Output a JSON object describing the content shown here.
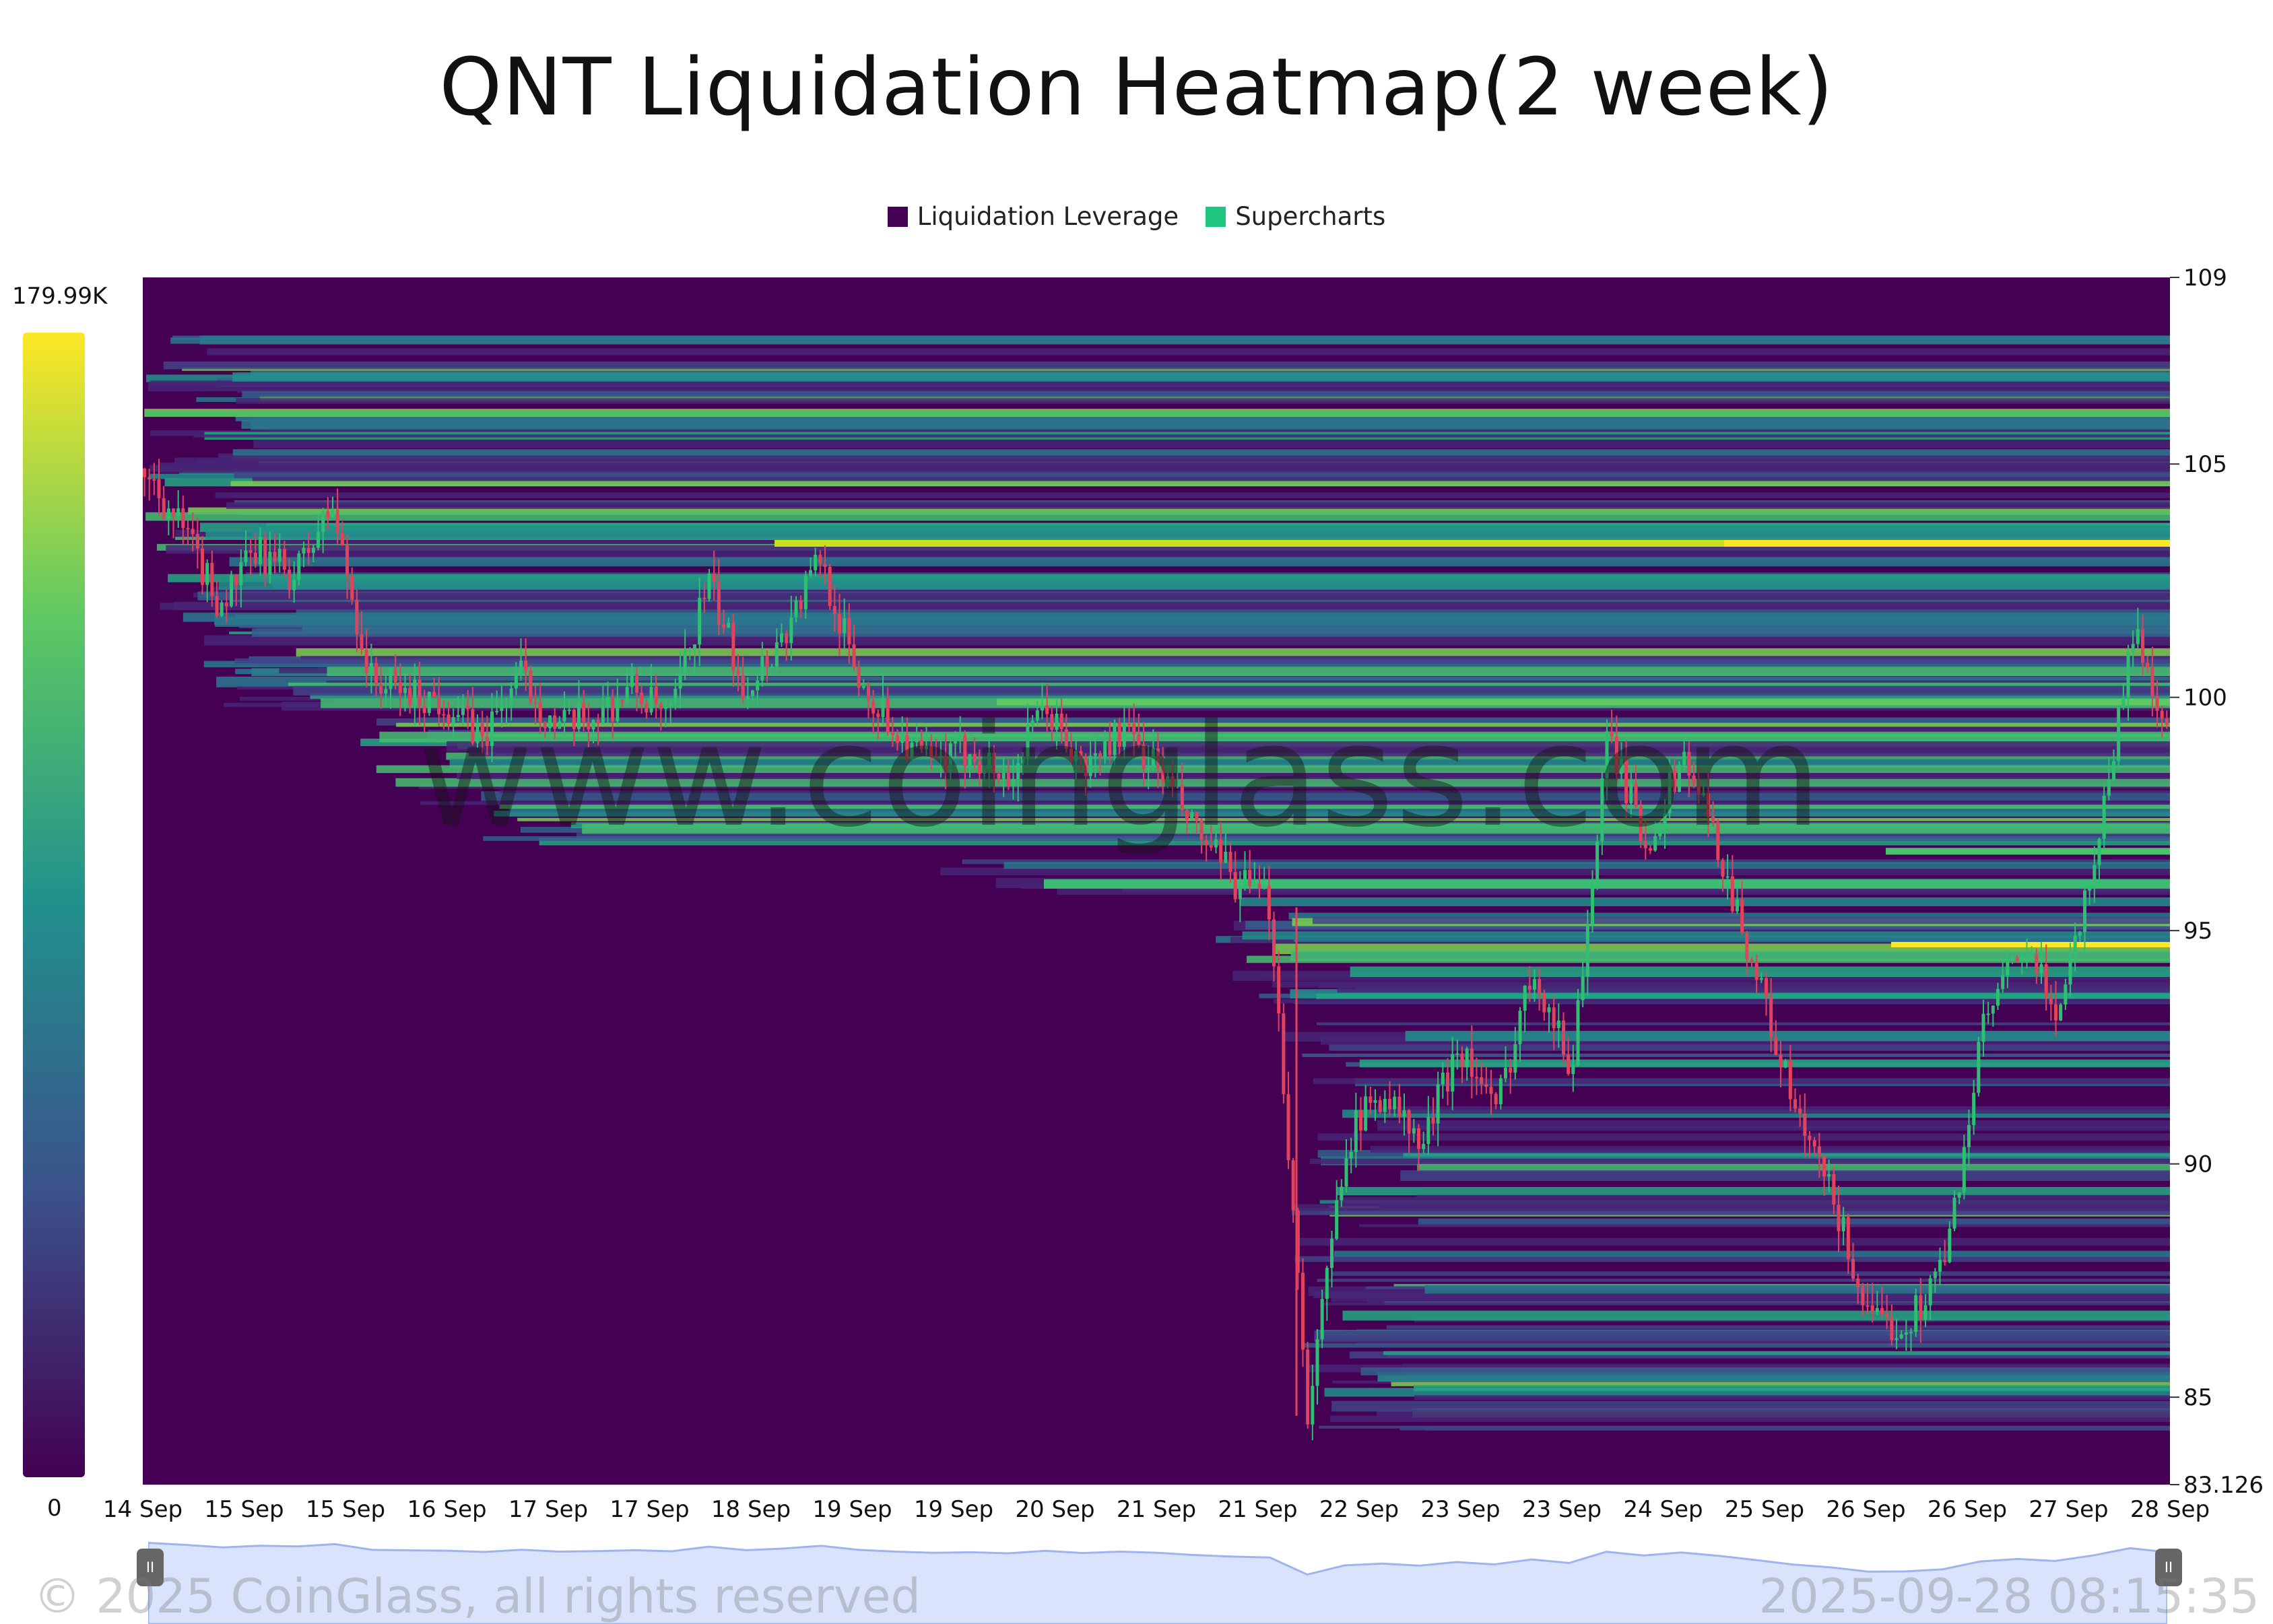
{
  "chart_data": {
    "type": "heatmap",
    "title": "QNT Liquidation Heatmap(2 week)",
    "legend": [
      {
        "name": "Liquidation Leverage",
        "color": "#440154"
      },
      {
        "name": "Supercharts",
        "color": "#1fc77e"
      }
    ],
    "colorbar": {
      "max_label": "179.99K",
      "min_label": "0",
      "colors": [
        "#440154",
        "#3b528b",
        "#21908d",
        "#5dc863",
        "#fde725"
      ]
    },
    "y_ticks": [
      "109",
      "105",
      "100",
      "95",
      "90",
      "85",
      "83.126"
    ],
    "ylim": [
      83.126,
      109
    ],
    "x_ticks": [
      "14 Sep",
      "15 Sep",
      "15 Sep",
      "16 Sep",
      "17 Sep",
      "17 Sep",
      "18 Sep",
      "19 Sep",
      "19 Sep",
      "20 Sep",
      "21 Sep",
      "21 Sep",
      "22 Sep",
      "23 Sep",
      "23 Sep",
      "24 Sep",
      "25 Sep",
      "26 Sep",
      "26 Sep",
      "27 Sep",
      "28 Sep"
    ],
    "price_path": [
      104.9,
      103.6,
      102.0,
      103.1,
      102.6,
      104.1,
      100.4,
      100.1,
      99.9,
      99.1,
      100.5,
      99.3,
      99.6,
      100.2,
      99.5,
      102.5,
      100.2,
      101.3,
      103.0,
      100.4,
      99.3,
      98.5,
      98.9,
      98.2,
      99.8,
      98.4,
      99.3,
      98.5,
      97.1,
      96.1,
      95.5,
      84.6,
      90.5,
      91.6,
      90.3,
      92.6,
      91.1,
      94.3,
      92.0,
      99.2,
      96.8,
      98.8,
      96.6,
      93.9,
      91.0,
      89.2,
      86.5,
      86.6,
      88.0,
      93.0,
      94.6,
      93.3,
      96.8,
      101.5,
      99.0
    ]
  },
  "watermark": "www.coinglass.com",
  "copyright": "© 2025 CoinGlass, all rights reserved",
  "timestamp": "2025-09-28 08:15:35"
}
